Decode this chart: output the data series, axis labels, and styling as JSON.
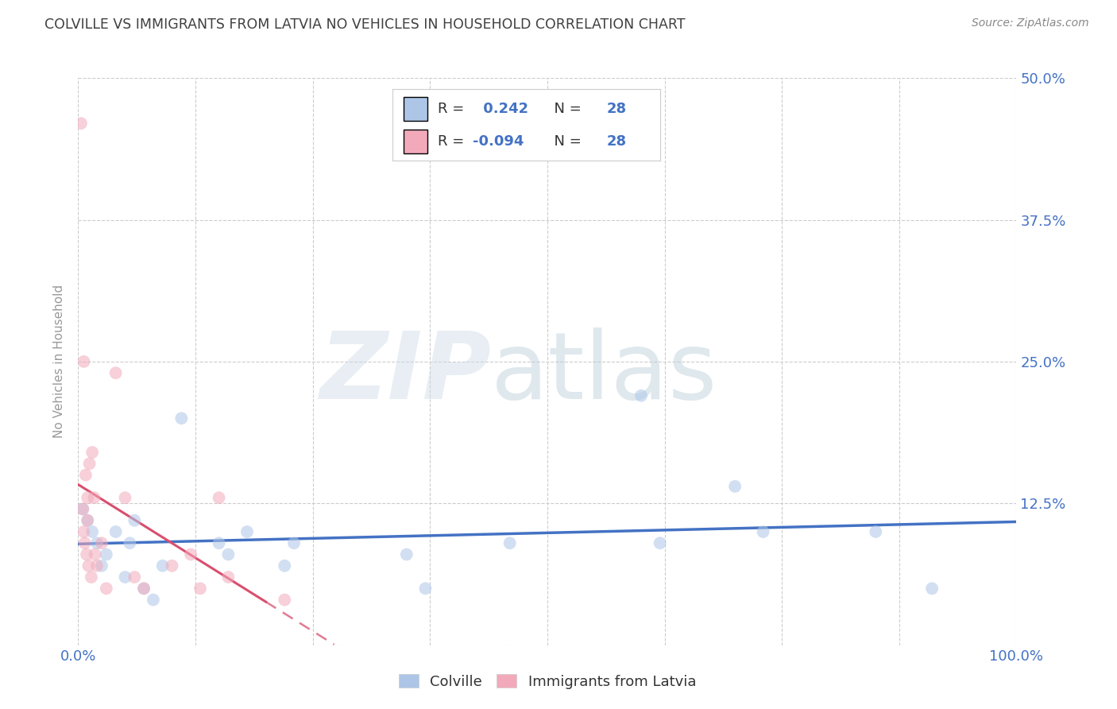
{
  "title": "COLVILLE VS IMMIGRANTS FROM LATVIA NO VEHICLES IN HOUSEHOLD CORRELATION CHART",
  "source": "Source: ZipAtlas.com",
  "ylabel": "No Vehicles in Household",
  "colville_R": 0.242,
  "colville_N": 28,
  "latvia_R": -0.094,
  "latvia_N": 28,
  "colville_color": "#adc6e8",
  "latvia_color": "#f2aabb",
  "colville_line_color": "#4472c4",
  "latvia_line_color": "#d94f6e",
  "bg_color": "#ffffff",
  "grid_color": "#cccccc",
  "title_color": "#404040",
  "source_color": "#888888",
  "axis_tick_color": "#4472c4",
  "ylabel_color": "#999999",
  "xlim": [
    0.0,
    1.0
  ],
  "ylim": [
    0.0,
    0.5
  ],
  "xtick_positions": [
    0.0,
    0.125,
    0.25,
    0.375,
    0.5,
    0.625,
    0.75,
    0.875,
    1.0
  ],
  "xtick_labels": [
    "0.0%",
    "",
    "",
    "",
    "",
    "",
    "",
    "",
    "100.0%"
  ],
  "ytick_positions": [
    0.0,
    0.125,
    0.25,
    0.375,
    0.5
  ],
  "ytick_labels_right": [
    "",
    "12.5%",
    "25.0%",
    "37.5%",
    "50.0%"
  ],
  "colville_x": [
    0.005,
    0.01,
    0.015,
    0.02,
    0.025,
    0.03,
    0.04,
    0.05,
    0.055,
    0.06,
    0.07,
    0.08,
    0.09,
    0.11,
    0.15,
    0.16,
    0.18,
    0.22,
    0.23,
    0.35,
    0.37,
    0.46,
    0.6,
    0.62,
    0.7,
    0.73,
    0.85,
    0.91
  ],
  "colville_y": [
    0.12,
    0.11,
    0.1,
    0.09,
    0.07,
    0.08,
    0.1,
    0.06,
    0.09,
    0.11,
    0.05,
    0.04,
    0.07,
    0.2,
    0.09,
    0.08,
    0.1,
    0.07,
    0.09,
    0.08,
    0.05,
    0.09,
    0.22,
    0.09,
    0.14,
    0.1,
    0.1,
    0.05
  ],
  "latvia_x": [
    0.003,
    0.005,
    0.006,
    0.007,
    0.008,
    0.009,
    0.01,
    0.011,
    0.012,
    0.014,
    0.015,
    0.017,
    0.018,
    0.02,
    0.025,
    0.03,
    0.04,
    0.05,
    0.06,
    0.07,
    0.1,
    0.12,
    0.13,
    0.15,
    0.16,
    0.22,
    0.006,
    0.01
  ],
  "latvia_y": [
    0.46,
    0.12,
    0.1,
    0.09,
    0.15,
    0.08,
    0.11,
    0.07,
    0.16,
    0.06,
    0.17,
    0.13,
    0.08,
    0.07,
    0.09,
    0.05,
    0.24,
    0.13,
    0.06,
    0.05,
    0.07,
    0.08,
    0.05,
    0.13,
    0.06,
    0.04,
    0.25,
    0.13
  ],
  "marker_size": 130,
  "marker_alpha": 0.55,
  "wm_zip_color": "#cddbe8",
  "wm_atlas_color": "#b8ccd8",
  "wm_alpha": 0.45
}
